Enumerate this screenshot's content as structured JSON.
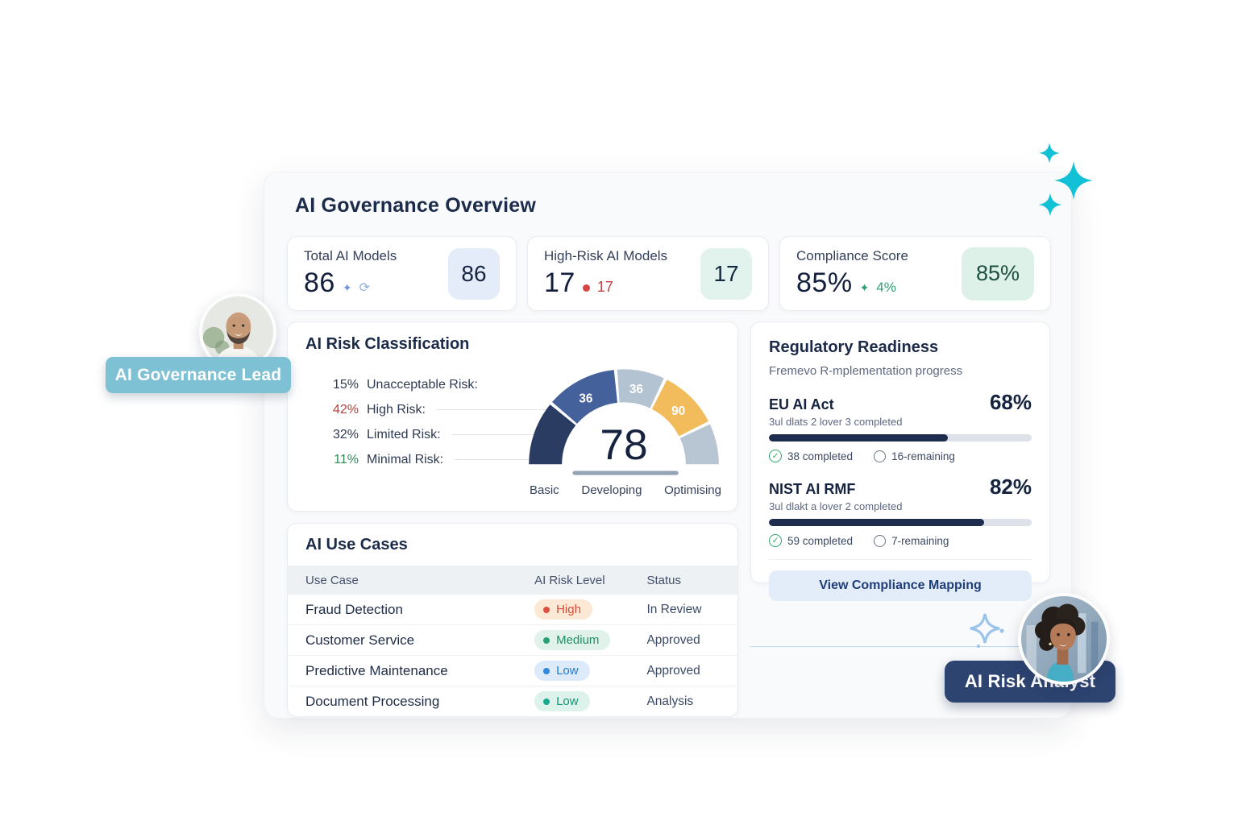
{
  "header": {
    "title": "AI Governance Overview"
  },
  "stats": [
    {
      "label": "Total AI Models",
      "value": "86",
      "badge": "86"
    },
    {
      "label": "High-Risk AI Models",
      "value": "17",
      "delta": "17",
      "badge": "17"
    },
    {
      "label": "Compliance Score",
      "value": "85%",
      "delta": "4%",
      "badge": "85%"
    }
  ],
  "risk_classification": {
    "title": "AI Risk Classification",
    "legend": [
      {
        "pct": "15%",
        "label": "Unacceptable Risk:"
      },
      {
        "pct": "42%",
        "label": "High Risk:"
      },
      {
        "pct": "32%",
        "label": "Limited Risk:"
      },
      {
        "pct": "11%",
        "label": "Minimal Risk:"
      }
    ],
    "gauge_value": "78",
    "segment_labels": [
      "36",
      "36",
      "90"
    ],
    "scale_labels": [
      "Basic",
      "Developing",
      "Optimising"
    ]
  },
  "regulatory": {
    "title": "Regulatory Readiness",
    "subtitle": "Fremevo R-mplementation progress",
    "frameworks": [
      {
        "name": "EU AI Act",
        "pct": "68%",
        "pct_value": 68,
        "note": "3ul dlats 2 lover 3 completed",
        "completed": "38 completed",
        "remaining": "16-remaining"
      },
      {
        "name": "NIST AI RMF",
        "pct": "82%",
        "pct_value": 82,
        "note": "3ul dlakt a lover 2 completed",
        "completed": "59 completed",
        "remaining": "7-remaining"
      }
    ],
    "button_label": "View Compliance Mapping"
  },
  "use_cases": {
    "title": "AI Use Cases",
    "columns": [
      "Use Case",
      "AI Risk Level",
      "Status"
    ],
    "rows": [
      {
        "name": "Fraud Detection",
        "risk": "High",
        "status": "In Review"
      },
      {
        "name": "Customer Service",
        "risk": "Medium",
        "status": "Approved"
      },
      {
        "name": "Predictive Maintenance",
        "risk": "Low",
        "status": "Approved"
      },
      {
        "name": "Document Processing",
        "risk": "Low",
        "status": "Analysis"
      }
    ]
  },
  "badges": {
    "governance_lead": "AI Governance Lead",
    "risk_analyst": "AI Risk Analyst"
  },
  "colors": {
    "accent_teal": "#12c1d5",
    "navy_text": "#1c2b4a",
    "progress_fill": "#1e2c4e",
    "gauge_segments": [
      "#2b3c63",
      "#44619c",
      "#b3c3d2",
      "#f2bc5c",
      "#b8c5d2"
    ],
    "risk_high": "#d94a38",
    "risk_medium": "#1f8f68",
    "risk_low_blue": "#1f7cd0",
    "risk_low_teal": "#12957c",
    "positive_green": "#2e9e6f",
    "delta_red": "#c04040",
    "badge_lead_bg": "#7fc1d4",
    "badge_analyst_bg": "#2d4370"
  },
  "chart_data": [
    {
      "type": "gauge",
      "title": "AI Risk Classification maturity gauge",
      "value": 78,
      "scale_labels": [
        "Basic",
        "Developing",
        "Optimising"
      ],
      "segment_labels": [
        "36",
        "36",
        "90"
      ],
      "distribution": [
        {
          "label": "Unacceptable Risk",
          "pct": 15
        },
        {
          "label": "High Risk",
          "pct": 42
        },
        {
          "label": "Limited Risk",
          "pct": 32
        },
        {
          "label": "Minimal Risk",
          "pct": 11
        }
      ]
    },
    {
      "type": "bar",
      "title": "Regulatory Readiness",
      "categories": [
        "EU AI Act",
        "NIST AI RMF"
      ],
      "values": [
        68,
        82
      ],
      "completed": [
        38,
        59
      ],
      "remaining": [
        16,
        7
      ],
      "ylim": [
        0,
        100
      ]
    }
  ]
}
